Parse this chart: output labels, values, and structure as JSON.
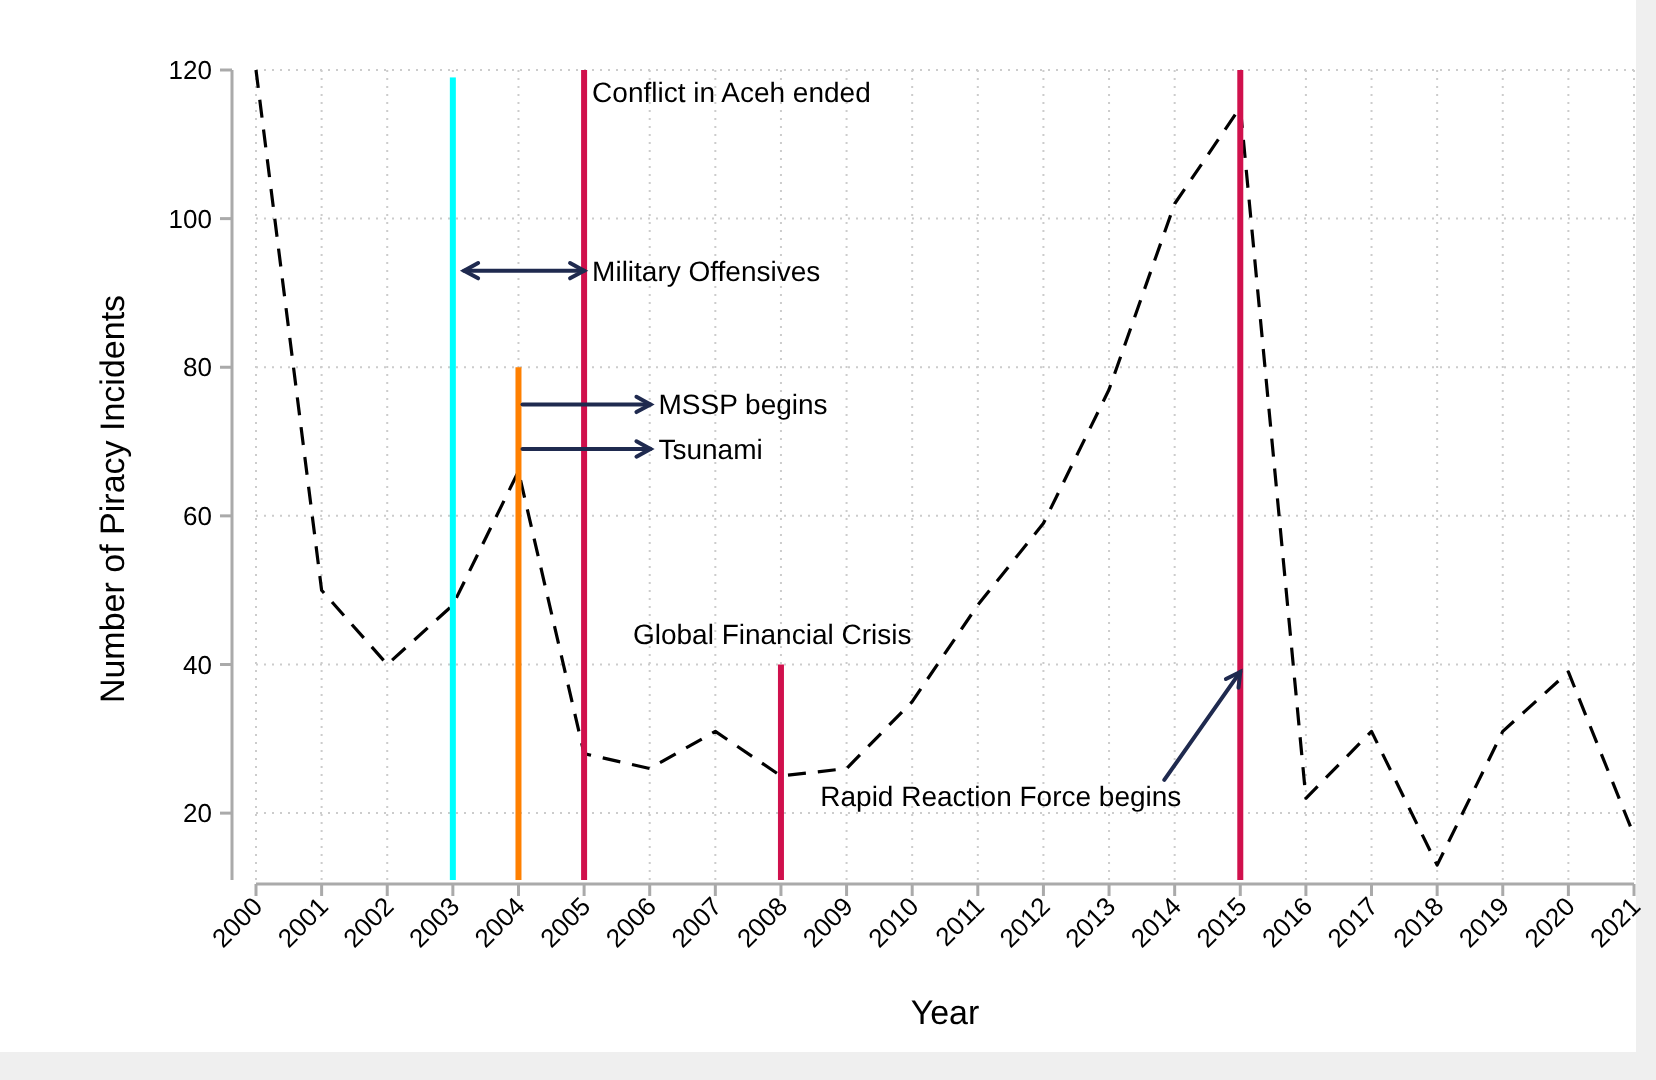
{
  "chart_data": {
    "type": "line",
    "xlabel": "Year",
    "ylabel": "Number of Piracy Incidents",
    "x": [
      2000,
      2001,
      2002,
      2003,
      2004,
      2005,
      2006,
      2007,
      2008,
      2009,
      2010,
      2011,
      2012,
      2013,
      2014,
      2015,
      2016,
      2017,
      2018,
      2019,
      2020,
      2021
    ],
    "series": [
      {
        "color": "#000000",
        "line_style": "dashed",
        "values": [
          120,
          50,
          40,
          48,
          66,
          28,
          26,
          31,
          25,
          26,
          35,
          48,
          59,
          77,
          102,
          115,
          22,
          31,
          13,
          31,
          39,
          17
        ]
      },
      {
        "type": "bar",
        "x": [
          2003,
          2004,
          2005,
          2008,
          2015
        ],
        "colors": [
          "#00ffff",
          "#ff8000",
          "#d0104c",
          "#d0104c",
          "#d0104c"
        ],
        "values": [
          119,
          80,
          120,
          40,
          120
        ]
      }
    ],
    "annotations": [
      {
        "text": "Conflict in Aceh ended",
        "x": 2005,
        "y": 117
      },
      {
        "text": "Military Offensives",
        "x": 2005,
        "y": 93
      },
      {
        "text": "MSSP begins",
        "x": 2004,
        "y": 75
      },
      {
        "text": "Tsunami",
        "x": 2004,
        "y": 69
      },
      {
        "text": "Global Financial Crisis",
        "x": 2008,
        "y": 40
      },
      {
        "text": "Rapid Reaction Force begins",
        "x": 2015,
        "y": 39
      }
    ],
    "xlim": [
      2000,
      2021
    ],
    "ylim": [
      11,
      120
    ],
    "xticks": [
      2000,
      2001,
      2002,
      2003,
      2004,
      2005,
      2006,
      2007,
      2008,
      2009,
      2010,
      2011,
      2012,
      2013,
      2014,
      2015,
      2016,
      2017,
      2018,
      2019,
      2020,
      2021
    ],
    "yticks": [
      20,
      40,
      60,
      80,
      100,
      120
    ],
    "grid": true,
    "marker": "none"
  }
}
